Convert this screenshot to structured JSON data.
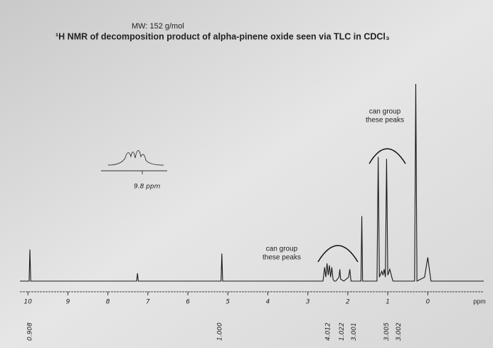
{
  "chart_data": {
    "type": "line",
    "subtitle": "MW: 152 g/mol",
    "title": "¹H NMR of decomposition product of alpha-pinene oxide seen via TLC in CDCl₃",
    "x_label": "ppm",
    "xlim": [
      10.2,
      -1.4
    ],
    "xticks": [
      10,
      9,
      8,
      7,
      6,
      5,
      4,
      3,
      2,
      1,
      0
    ],
    "ylim": [
      0,
      100
    ],
    "color": "#1a1a1a",
    "x": [
      10.2,
      9.97,
      9.95,
      9.93,
      7.28,
      7.26,
      7.24,
      5.17,
      5.15,
      5.13,
      2.62,
      2.58,
      2.55,
      2.52,
      2.49,
      2.46,
      2.43,
      2.4,
      2.37,
      2.34,
      2.3,
      2.22,
      2.2,
      2.18,
      2.1,
      1.98,
      1.95,
      1.92,
      1.67,
      1.65,
      1.63,
      1.45,
      1.27,
      1.24,
      1.21,
      1.15,
      1.12,
      1.09,
      1.06,
      1.03,
      1.0,
      0.95,
      0.9,
      0.87,
      0.33,
      0.3,
      0.27,
      0.08,
      0.0,
      -0.08,
      -1.4
    ],
    "values": [
      0,
      0,
      16,
      0,
      0,
      4,
      0,
      0,
      14,
      0,
      0,
      7,
      2,
      9,
      3,
      8,
      2,
      7,
      1,
      0,
      0,
      2,
      6,
      1,
      0,
      2,
      6,
      0,
      0,
      33,
      0,
      0,
      0,
      63,
      2,
      5,
      3,
      6,
      2,
      62,
      3,
      6,
      2,
      0,
      0,
      100,
      0,
      2,
      12,
      0,
      0
    ],
    "integrals": [
      {
        "ppm": 9.95,
        "text": "0.908"
      },
      {
        "ppm": 5.2,
        "text": "1.000"
      },
      {
        "ppm": 2.5,
        "text": "4.012"
      },
      {
        "ppm": 2.15,
        "text": "1.022"
      },
      {
        "ppm": 1.85,
        "text": "3.001"
      },
      {
        "ppm": 1.03,
        "text": "3.005"
      },
      {
        "ppm": 0.73,
        "text": "3.002"
      }
    ],
    "annotations": [
      {
        "lines": [
          "can group",
          "these peaks"
        ]
      },
      {
        "lines": [
          "can group",
          "these peaks"
        ]
      }
    ],
    "inset_label": "9.8 ppm"
  }
}
